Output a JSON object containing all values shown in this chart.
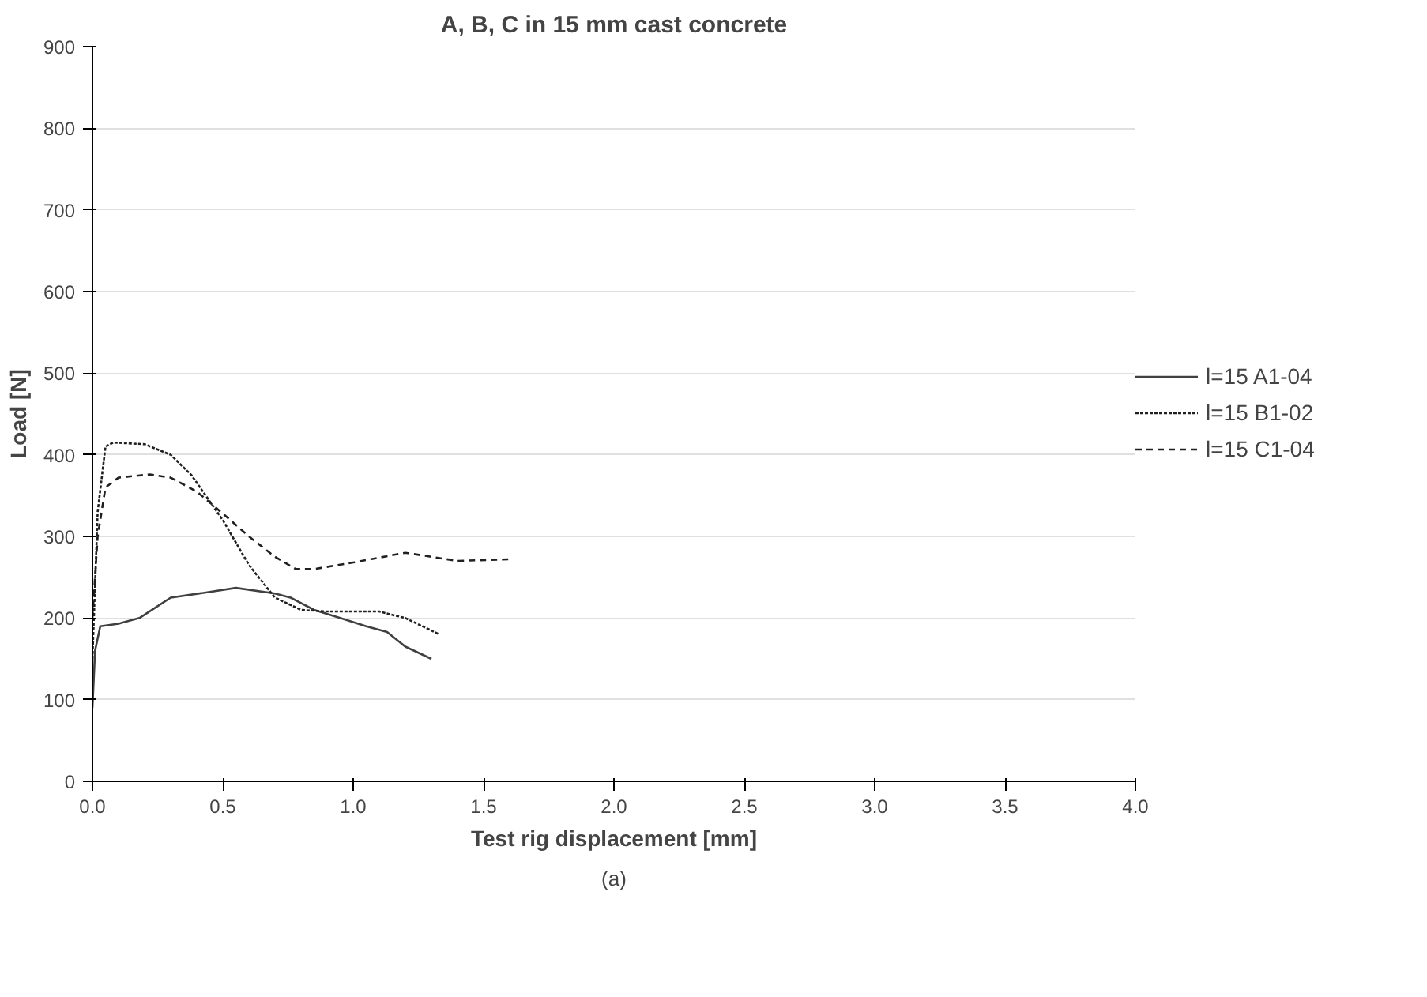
{
  "chart_data": {
    "type": "line",
    "title": "A, B, C in 15 mm cast concrete",
    "xlabel": "Test rig displacement [mm]",
    "ylabel": "Load [N]",
    "annotations": [
      "(a)"
    ],
    "xlim": [
      0,
      4
    ],
    "xticks": [
      {
        "value": 0,
        "label": "0.0"
      },
      {
        "value": 0.5,
        "label": "0.5"
      },
      {
        "value": 1,
        "label": "1.0"
      },
      {
        "value": 1.5,
        "label": "1.5"
      },
      {
        "value": 2,
        "label": "2.0"
      },
      {
        "value": 2.5,
        "label": "2.5"
      },
      {
        "value": 3,
        "label": "3.0"
      },
      {
        "value": 3.5,
        "label": "3.5"
      },
      {
        "value": 4,
        "label": "4.0"
      }
    ],
    "ylim": [
      0,
      900
    ],
    "yticks": [
      0,
      100,
      200,
      300,
      400,
      500,
      600,
      700,
      800,
      900
    ],
    "grid": "y",
    "legend": "right",
    "marker": "none",
    "series": [
      {
        "name": "l=15 A1-04",
        "color": "#404040",
        "line_style": "solid",
        "x": [
          0,
          0.01,
          0.03,
          0.1,
          0.18,
          0.3,
          0.45,
          0.55,
          0.7,
          0.76,
          0.85,
          0.95,
          1.05,
          1.13,
          1.2,
          1.3
        ],
        "values": [
          90,
          160,
          190,
          193,
          200,
          225,
          232,
          237,
          230,
          225,
          210,
          200,
          190,
          183,
          165,
          150
        ]
      },
      {
        "name": "l=15 B1-02",
        "color": "#202020",
        "line_style": "dotted",
        "x": [
          0,
          0.02,
          0.05,
          0.08,
          0.2,
          0.3,
          0.38,
          0.5,
          0.6,
          0.7,
          0.8,
          0.9,
          1.0,
          1.1,
          1.2,
          1.33
        ],
        "values": [
          150,
          330,
          410,
          415,
          413,
          400,
          375,
          320,
          265,
          225,
          210,
          208,
          208,
          208,
          200,
          180
        ]
      },
      {
        "name": "l=15 C1-04",
        "color": "#202020",
        "line_style": "dashed",
        "x": [
          0,
          0.02,
          0.05,
          0.1,
          0.22,
          0.3,
          0.4,
          0.5,
          0.6,
          0.7,
          0.78,
          0.85,
          1.0,
          1.2,
          1.3,
          1.4,
          1.6
        ],
        "values": [
          200,
          300,
          360,
          372,
          376,
          372,
          355,
          328,
          300,
          275,
          260,
          260,
          268,
          280,
          275,
          270,
          272
        ]
      }
    ]
  }
}
